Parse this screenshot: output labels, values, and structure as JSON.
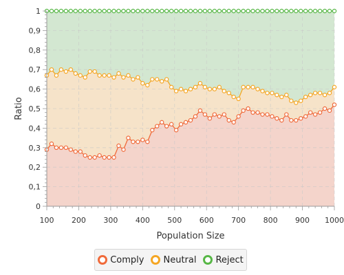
{
  "chart_data": {
    "type": "area",
    "stacked": true,
    "xlabel": "Population Size",
    "ylabel": "Ratio",
    "xlim": [
      100,
      1000
    ],
    "ylim": [
      0,
      1
    ],
    "x_ticks": [
      "100",
      "200",
      "300",
      "400",
      "500",
      "600",
      "700",
      "800",
      "900",
      "1000"
    ],
    "y_ticks": [
      "0",
      "0,1",
      "0,2",
      "0,3",
      "0,4",
      "0,5",
      "0,6",
      "0,7",
      "0,8",
      "0,9",
      "1"
    ],
    "grid": true,
    "legend_position": "bottom",
    "x": [
      100,
      115,
      130,
      145,
      160,
      175,
      190,
      205,
      220,
      235,
      250,
      265,
      280,
      295,
      310,
      325,
      340,
      355,
      370,
      385,
      400,
      415,
      430,
      445,
      460,
      475,
      490,
      505,
      520,
      535,
      550,
      565,
      580,
      595,
      610,
      625,
      640,
      655,
      670,
      685,
      700,
      715,
      730,
      745,
      760,
      775,
      790,
      805,
      820,
      835,
      850,
      865,
      880,
      895,
      910,
      925,
      940,
      955,
      970,
      985,
      1000
    ],
    "series": [
      {
        "name": "Comply",
        "color": "#f06a3a",
        "fill": "#f4d4cb",
        "values": [
          0.29,
          0.32,
          0.3,
          0.3,
          0.3,
          0.29,
          0.28,
          0.28,
          0.26,
          0.25,
          0.25,
          0.26,
          0.25,
          0.25,
          0.25,
          0.31,
          0.29,
          0.35,
          0.33,
          0.33,
          0.34,
          0.33,
          0.39,
          0.41,
          0.43,
          0.41,
          0.42,
          0.39,
          0.42,
          0.43,
          0.44,
          0.46,
          0.49,
          0.47,
          0.45,
          0.47,
          0.46,
          0.47,
          0.44,
          0.43,
          0.46,
          0.49,
          0.5,
          0.48,
          0.48,
          0.47,
          0.47,
          0.46,
          0.45,
          0.44,
          0.47,
          0.44,
          0.44,
          0.45,
          0.46,
          0.48,
          0.47,
          0.48,
          0.5,
          0.49,
          0.52
        ]
      },
      {
        "name": "Neutral",
        "color": "#f5a623",
        "fill": "#f6e3c9",
        "values": [
          0.67,
          0.7,
          0.67,
          0.7,
          0.69,
          0.7,
          0.68,
          0.67,
          0.66,
          0.69,
          0.69,
          0.67,
          0.67,
          0.67,
          0.66,
          0.68,
          0.66,
          0.67,
          0.65,
          0.66,
          0.63,
          0.62,
          0.65,
          0.65,
          0.64,
          0.65,
          0.61,
          0.59,
          0.6,
          0.59,
          0.6,
          0.61,
          0.63,
          0.61,
          0.6,
          0.6,
          0.61,
          0.59,
          0.58,
          0.56,
          0.55,
          0.61,
          0.61,
          0.61,
          0.6,
          0.59,
          0.58,
          0.58,
          0.57,
          0.56,
          0.57,
          0.54,
          0.53,
          0.54,
          0.56,
          0.57,
          0.58,
          0.58,
          0.57,
          0.58,
          0.61
        ]
      },
      {
        "name": "Reject",
        "color": "#57b746",
        "fill": "#d3e7d1",
        "values": [
          1,
          1,
          1,
          1,
          1,
          1,
          1,
          1,
          1,
          1,
          1,
          1,
          1,
          1,
          1,
          1,
          1,
          1,
          1,
          1,
          1,
          1,
          1,
          1,
          1,
          1,
          1,
          1,
          1,
          1,
          1,
          1,
          1,
          1,
          1,
          1,
          1,
          1,
          1,
          1,
          1,
          1,
          1,
          1,
          1,
          1,
          1,
          1,
          1,
          1,
          1,
          1,
          1,
          1,
          1,
          1,
          1,
          1,
          1,
          1,
          1
        ]
      }
    ]
  },
  "legend": {
    "items": [
      {
        "label": "Comply",
        "color": "#f06a3a"
      },
      {
        "label": "Neutral",
        "color": "#f5a623"
      },
      {
        "label": "Reject",
        "color": "#57b746"
      }
    ]
  }
}
